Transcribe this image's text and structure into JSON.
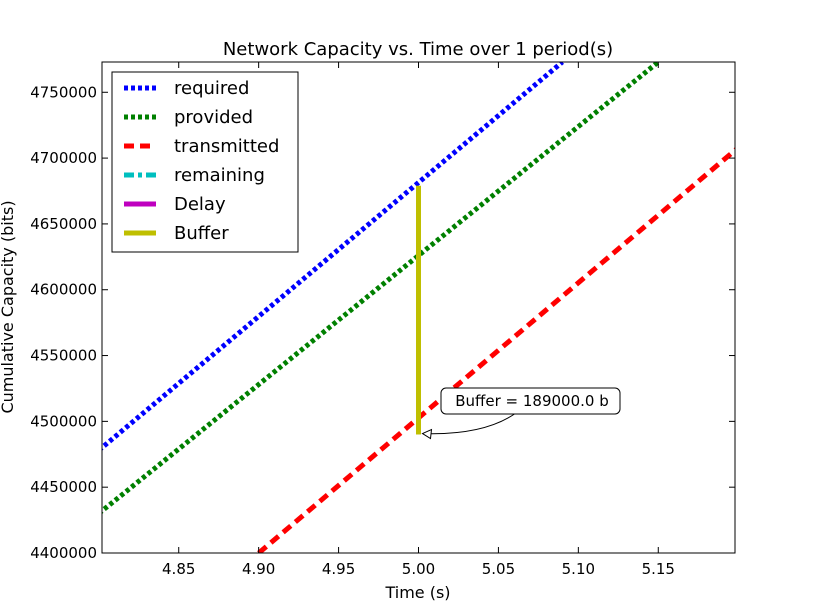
{
  "chart_data": {
    "type": "line",
    "title": "Network Capacity vs. Time over 1 period(s)",
    "xlabel": "Time (s)",
    "ylabel": "Cumulative Capacity (bits)",
    "xlim": [
      4.802,
      5.198
    ],
    "ylim": [
      4400000,
      4773000
    ],
    "xticks": [
      4.85,
      4.9,
      4.95,
      5.0,
      5.05,
      5.1,
      5.15
    ],
    "xtick_labels": [
      "4.85",
      "4.90",
      "4.95",
      "5.00",
      "5.05",
      "5.10",
      "5.15"
    ],
    "yticks": [
      4400000,
      4450000,
      4500000,
      4550000,
      4600000,
      4650000,
      4700000,
      4750000
    ],
    "ytick_labels": [
      "4400000",
      "4450000",
      "4500000",
      "4550000",
      "4600000",
      "4650000",
      "4700000",
      "4750000"
    ],
    "grid": false,
    "legend_position": "top-left",
    "series": [
      {
        "name": "required",
        "color": "#0000ff",
        "style": "dotted",
        "x": [
          4.8,
          5.09
        ],
        "y": [
          4478000,
          4773000
        ]
      },
      {
        "name": "provided",
        "color": "#008000",
        "style": "dotted",
        "x": [
          4.8,
          5.15
        ],
        "y": [
          4430000,
          4773000
        ]
      },
      {
        "name": "transmitted",
        "color": "#ff0000",
        "style": "dashed",
        "x": [
          4.9,
          5.2
        ],
        "y": [
          4400000,
          4708000
        ]
      },
      {
        "name": "remaining",
        "color": "#00bfbf",
        "style": "dashdot",
        "x": [],
        "y": []
      },
      {
        "name": "Delay",
        "color": "#bf00bf",
        "style": "solid",
        "x": [],
        "y": []
      },
      {
        "name": "Buffer",
        "color": "#bfbf00",
        "style": "solid",
        "x": [
          5.0,
          5.0
        ],
        "y": [
          4490000,
          4679000
        ]
      }
    ],
    "annotation": {
      "text": "Buffer = 189000.0 b",
      "point": {
        "x": 5.0,
        "y": 4490000
      }
    }
  }
}
